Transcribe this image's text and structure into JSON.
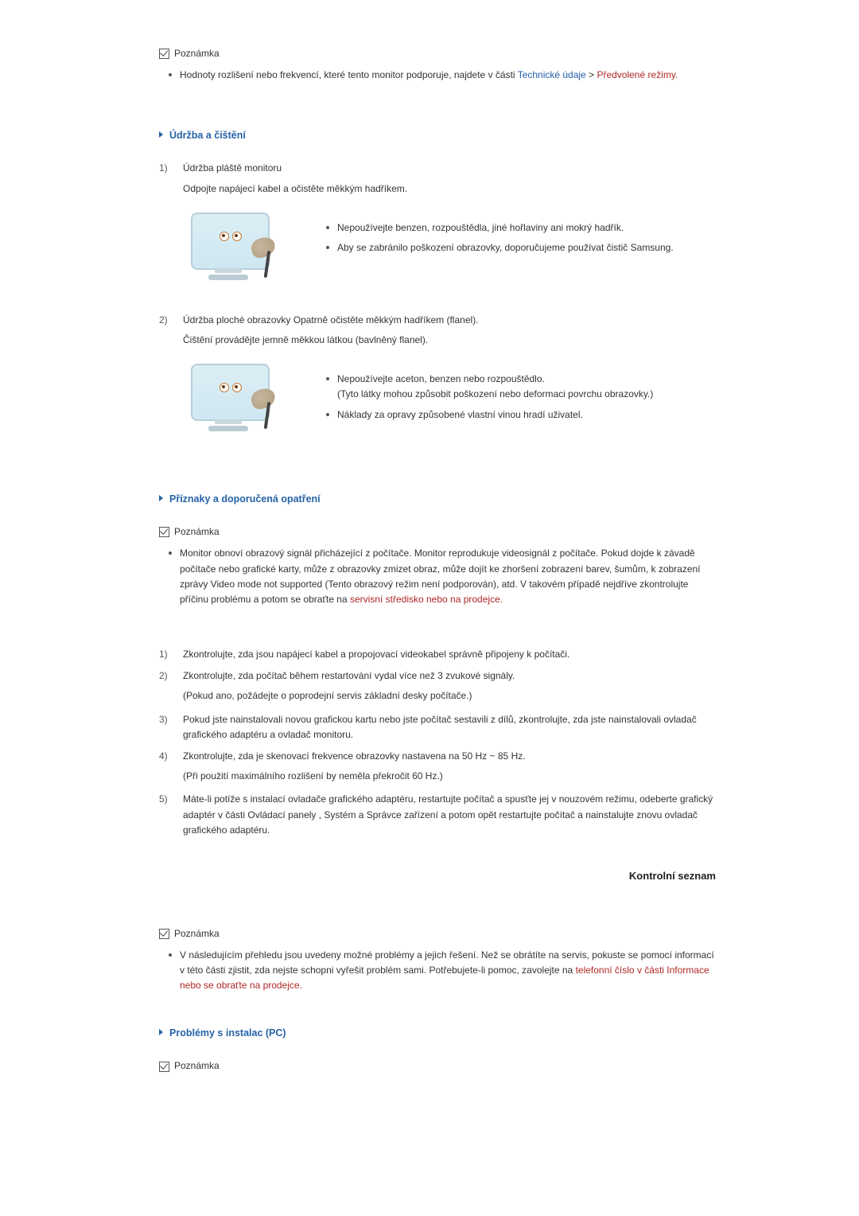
{
  "note_label": "Poznámka",
  "intro_note": {
    "prefix": "Hodnoty rozlišení nebo frekvencí, které tento monitor podporuje, najdete v části ",
    "link1": "Technické údaje",
    "sep": " > ",
    "link2": "Předvolené režimy.",
    "link2_suffix": ""
  },
  "sec_maintenance": {
    "title": "Údržba a čištění",
    "item1": {
      "num": "1)",
      "heading": "Údržba pláště monitoru",
      "sub": "Odpojte napájecí kabel a očistěte měkkým hadříkem.",
      "bullets": [
        "Nepoužívejte benzen, rozpouštědla, jiné hořlaviny ani mokrý hadřík.",
        "Aby se zabránilo poškození obrazovky, doporučujeme používat čistič Samsung."
      ]
    },
    "item2": {
      "num": "2)",
      "heading": "Údržba ploché obrazovky Opatrně očistěte měkkým hadříkem (flanel).",
      "sub": "Čištění provádějte jemně měkkou látkou (bavlněný flanel).",
      "bullets_a": "Nepoužívejte aceton, benzen nebo rozpouštědlo.",
      "bullets_a2": "(Tyto látky mohou způsobit poškození nebo deformaci povrchu obrazovky.)",
      "bullets_b": "Náklady za opravy způsobené vlastní vinou hradí uživatel."
    }
  },
  "sec_symptoms": {
    "title": "Příznaky a doporučená opatření",
    "note": {
      "prefix": "Monitor obnoví obrazový signál přicházející z počítače. Monitor reprodukuje videosignál z počítače. Pokud dojde k závadě počítače nebo grafické karty, může z obrazovky zmizet obraz, může dojít ke zhoršení zobrazení barev, šumům, k zobrazení zprávy Video mode not supported (Tento obrazový režim není podporován), atd. V takovém případě nejdříve zkontrolujte příčinu problému a potom se obraťte na ",
      "link": "servisní středisko nebo na prodejce."
    },
    "steps": [
      {
        "num": "1)",
        "text": "Zkontrolujte, zda jsou napájecí kabel a propojovací videokabel správně připojeny k počítači."
      },
      {
        "num": "2)",
        "text": "Zkontrolujte, zda počítač během restartování vydal více než 3 zvukové signály.",
        "sub": "(Pokud ano, požádejte o poprodejní servis základní desky počítače.)"
      },
      {
        "num": "3)",
        "text": "Pokud jste nainstalovali novou grafickou kartu nebo jste počítač sestavili z dílů, zkontrolujte, zda jste nainstalovali ovladač grafického adaptéru a ovladač monitoru."
      },
      {
        "num": "4)",
        "text": "Zkontrolujte, zda je skenovací frekvence obrazovky nastavena na 50 Hz ~ 85 Hz.",
        "sub": "(Při použití maximálního rozlišení by neměla překročit 60 Hz.)"
      },
      {
        "num": "5)",
        "text": "Máte-li potíže s instalací ovladače grafického adaptéru, restartujte počítač a spusťte jej v nouzovém režimu, odeberte grafický adaptér v části Ovládací panely , Systém a Správce zařízení a potom opět restartujte počítač a nainstalujte znovu ovladač grafického adaptéru."
      }
    ],
    "kontrol": "Kontrolní seznam",
    "note2": {
      "prefix": "V následujícím přehledu jsou uvedeny možné problémy a jejich řešení. Než se obrátíte na servis, pokuste se pomocí informací v této části zjistit, zda nejste schopni vyřešit problém sami. Potřebujete-li pomoc, zavolejte na ",
      "link": "telefonní číslo v části Informace nebo se obraťte na prodejce."
    }
  },
  "sec_problems": {
    "title": "Problémy s instalac (PC)"
  }
}
